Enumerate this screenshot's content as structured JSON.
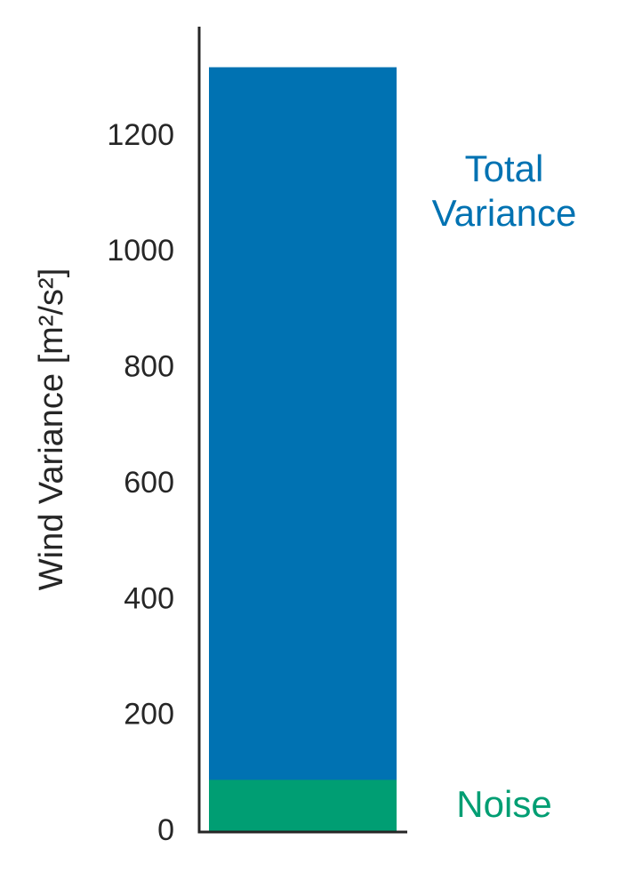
{
  "chart_data": {
    "type": "bar",
    "ylabel": "Wind Variance [m²/s²]",
    "series": [
      {
        "name": "Total Variance",
        "color": "#0072b2",
        "values": [
          1320
        ]
      },
      {
        "name": "Noise",
        "color": "#009e73",
        "values": [
          90
        ]
      }
    ],
    "ylim": [
      0,
      1390
    ],
    "yticks": [
      0,
      200,
      400,
      600,
      800,
      1000,
      1200
    ],
    "grid": false
  }
}
